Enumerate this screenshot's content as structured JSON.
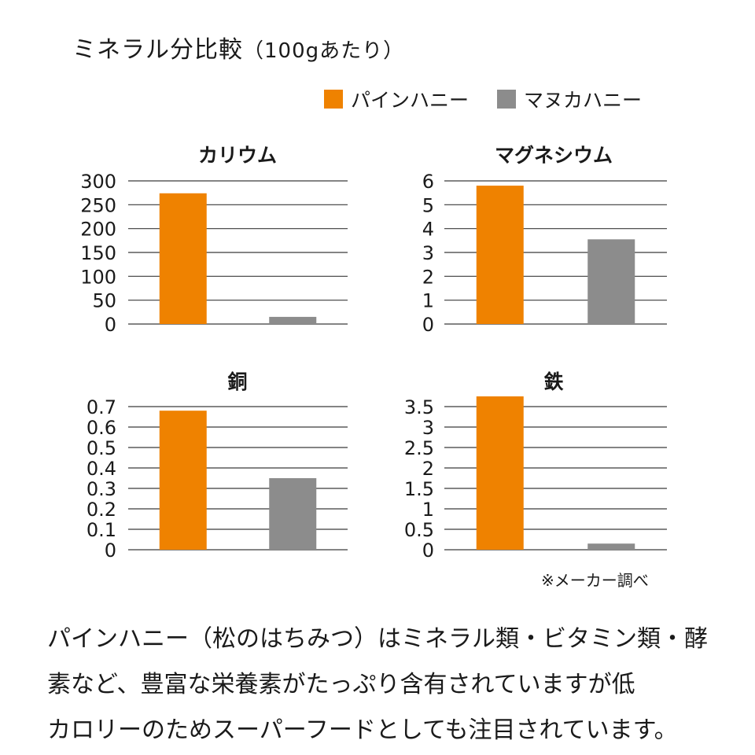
{
  "title": "ミネラル分比較",
  "title_note": "（100gあたり）",
  "legend": [
    {
      "name": "パインハニー",
      "color": "#ef8200"
    },
    {
      "name": "マヌカハニー",
      "color": "#8c8c8c"
    }
  ],
  "note": "※メーカー調べ",
  "description_lines": [
    "パインハニー（松のはちみつ）はミネラル類・ビタミン類・酵",
    "素など、豊富な栄養素がたっぷり含有されていますが低",
    "カロリーのためスーパーフードとしても注目されています。"
  ],
  "chart_data": [
    {
      "type": "bar",
      "title": "カリウム",
      "categories": [
        "パインハニー",
        "マヌカハニー"
      ],
      "values": [
        274,
        15
      ],
      "colors": [
        "#ef8200",
        "#8c8c8c"
      ],
      "ylim": [
        0,
        300
      ],
      "yticks": [
        "0",
        "50",
        "100",
        "150",
        "200",
        "250",
        "300"
      ],
      "grid": true
    },
    {
      "type": "bar",
      "title": "マグネシウム",
      "categories": [
        "パインハニー",
        "マヌカハニー"
      ],
      "values": [
        5.8,
        3.55
      ],
      "colors": [
        "#ef8200",
        "#8c8c8c"
      ],
      "ylim": [
        0,
        6
      ],
      "yticks": [
        "0",
        "1",
        "2",
        "3",
        "4",
        "5",
        "6"
      ],
      "grid": true
    },
    {
      "type": "bar",
      "title": "銅",
      "categories": [
        "パインハニー",
        "マヌカハニー"
      ],
      "values": [
        0.68,
        0.35
      ],
      "colors": [
        "#ef8200",
        "#8c8c8c"
      ],
      "ylim": [
        0,
        0.7
      ],
      "yticks": [
        "0",
        "0.1",
        "0.2",
        "0.3",
        "0.4",
        "0.5",
        "0.6",
        "0.7"
      ],
      "grid": true
    },
    {
      "type": "bar",
      "title": "鉄",
      "categories": [
        "パインハニー",
        "マヌカハニー"
      ],
      "values": [
        3.75,
        0.15
      ],
      "colors": [
        "#ef8200",
        "#8c8c8c"
      ],
      "ylim": [
        0,
        3.5
      ],
      "yticks": [
        "0",
        "0.5",
        "1",
        "1.5",
        "2",
        "2.5",
        "3",
        "3.5"
      ],
      "grid": true
    }
  ]
}
